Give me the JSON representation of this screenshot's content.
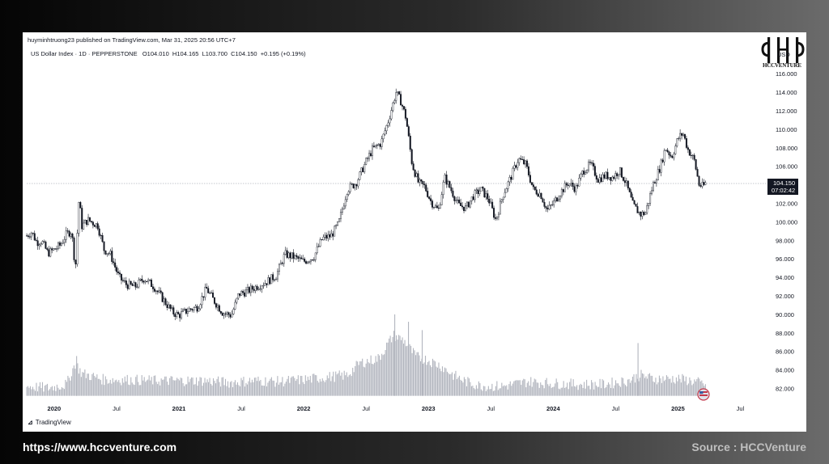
{
  "header": {
    "publisher": "huyminhtruong23 published on TradingView.com, Mar 31, 2025 20:56 UTC+7",
    "symbol_line": "US Dollar Index · 1D · PEPPERSTONE   O104.010  H104.165  L103.700  C104.150  +0.195 (+0.19%)"
  },
  "logo": {
    "text": "HCCVENTURE",
    "currency_tag": "USD"
  },
  "price_label": {
    "value": "104.150",
    "countdown": "07:02:42"
  },
  "footer": {
    "tradingview": "TradingView",
    "website": "https://www.hccventure.com",
    "source": "Source : HCCVenture"
  },
  "colors": {
    "candle": "#131722",
    "volume": "#b2b5be",
    "price_tag": "#131722"
  },
  "chart_data": {
    "type": "line",
    "title": "US Dollar Index · 1D · PEPPERSTONE",
    "y_axis_ticks": [
      "82.000",
      "84.000",
      "86.000",
      "88.000",
      "90.000",
      "92.000",
      "94.000",
      "96.000",
      "98.000",
      "100.000",
      "102.000",
      "104.000",
      "106.000",
      "108.000",
      "110.000",
      "112.000",
      "114.000",
      "116.000"
    ],
    "ylim": [
      80.5,
      117.0
    ],
    "x_axis_ticks": [
      {
        "label": "2020",
        "t": 2020.0,
        "bold": true
      },
      {
        "label": "Jul",
        "t": 2020.5,
        "bold": false
      },
      {
        "label": "2021",
        "t": 2021.0,
        "bold": true
      },
      {
        "label": "Jul",
        "t": 2021.5,
        "bold": false
      },
      {
        "label": "2022",
        "t": 2022.0,
        "bold": true
      },
      {
        "label": "Jul",
        "t": 2022.5,
        "bold": false
      },
      {
        "label": "2023",
        "t": 2023.0,
        "bold": true
      },
      {
        "label": "Jul",
        "t": 2023.5,
        "bold": false
      },
      {
        "label": "2024",
        "t": 2024.0,
        "bold": true
      },
      {
        "label": "Jul",
        "t": 2024.5,
        "bold": false
      },
      {
        "label": "2025",
        "t": 2025.0,
        "bold": true
      },
      {
        "label": "Jul",
        "t": 2025.5,
        "bold": false
      }
    ],
    "xlim": [
      2019.78,
      2025.75
    ],
    "last_close": 104.15,
    "series": [
      {
        "points": [
          [
            2019.78,
            98.5
          ],
          [
            2019.82,
            98.9
          ],
          [
            2019.86,
            97.8
          ],
          [
            2019.9,
            97.9
          ],
          [
            2019.95,
            96.6
          ],
          [
            2020.0,
            97.0
          ],
          [
            2020.05,
            97.5
          ],
          [
            2020.1,
            98.7
          ],
          [
            2020.14,
            99.0
          ],
          [
            2020.17,
            94.9
          ],
          [
            2020.2,
            102.8
          ],
          [
            2020.22,
            99.5
          ],
          [
            2020.27,
            100.2
          ],
          [
            2020.35,
            99.6
          ],
          [
            2020.4,
            97.0
          ],
          [
            2020.45,
            96.5
          ],
          [
            2020.52,
            94.0
          ],
          [
            2020.58,
            93.2
          ],
          [
            2020.65,
            93.0
          ],
          [
            2020.72,
            93.9
          ],
          [
            2020.8,
            93.0
          ],
          [
            2020.88,
            91.5
          ],
          [
            2020.95,
            90.2
          ],
          [
            2021.0,
            89.9
          ],
          [
            2021.08,
            90.5
          ],
          [
            2021.15,
            90.8
          ],
          [
            2021.22,
            92.8
          ],
          [
            2021.28,
            91.5
          ],
          [
            2021.35,
            90.2
          ],
          [
            2021.42,
            89.9
          ],
          [
            2021.48,
            92.2
          ],
          [
            2021.55,
            92.5
          ],
          [
            2021.62,
            93.0
          ],
          [
            2021.7,
            93.5
          ],
          [
            2021.78,
            94.2
          ],
          [
            2021.85,
            96.5
          ],
          [
            2021.92,
            96.2
          ],
          [
            2022.0,
            95.7
          ],
          [
            2022.08,
            96.2
          ],
          [
            2022.15,
            98.2
          ],
          [
            2022.22,
            98.5
          ],
          [
            2022.28,
            99.8
          ],
          [
            2022.35,
            103.5
          ],
          [
            2022.42,
            104.2
          ],
          [
            2022.5,
            106.5
          ],
          [
            2022.55,
            107.8
          ],
          [
            2022.62,
            108.5
          ],
          [
            2022.68,
            111.0
          ],
          [
            2022.74,
            114.0
          ],
          [
            2022.78,
            113.0
          ],
          [
            2022.82,
            111.2
          ],
          [
            2022.87,
            106.2
          ],
          [
            2022.92,
            104.2
          ],
          [
            2022.97,
            103.8
          ],
          [
            2023.02,
            102.2
          ],
          [
            2023.08,
            101.2
          ],
          [
            2023.13,
            104.8
          ],
          [
            2023.18,
            103.5
          ],
          [
            2023.24,
            101.8
          ],
          [
            2023.3,
            101.5
          ],
          [
            2023.36,
            102.8
          ],
          [
            2023.42,
            103.5
          ],
          [
            2023.48,
            102.5
          ],
          [
            2023.54,
            100.2
          ],
          [
            2023.6,
            103.0
          ],
          [
            2023.66,
            104.8
          ],
          [
            2023.72,
            106.8
          ],
          [
            2023.78,
            106.2
          ],
          [
            2023.84,
            103.5
          ],
          [
            2023.9,
            103.0
          ],
          [
            2023.95,
            101.2
          ],
          [
            2024.0,
            102.0
          ],
          [
            2024.06,
            103.2
          ],
          [
            2024.12,
            104.2
          ],
          [
            2024.18,
            103.6
          ],
          [
            2024.24,
            105.5
          ],
          [
            2024.3,
            106.2
          ],
          [
            2024.36,
            104.6
          ],
          [
            2024.42,
            105.0
          ],
          [
            2024.48,
            104.8
          ],
          [
            2024.53,
            105.6
          ],
          [
            2024.58,
            104.3
          ],
          [
            2024.64,
            101.8
          ],
          [
            2024.7,
            100.8
          ],
          [
            2024.74,
            101.0
          ],
          [
            2024.8,
            104.0
          ],
          [
            2024.86,
            106.0
          ],
          [
            2024.9,
            108.0
          ],
          [
            2024.95,
            107.0
          ],
          [
            2025.0,
            109.0
          ],
          [
            2025.04,
            109.6
          ],
          [
            2025.08,
            107.8
          ],
          [
            2025.13,
            106.7
          ],
          [
            2025.17,
            104.0
          ],
          [
            2025.2,
            103.8
          ],
          [
            2025.22,
            104.15
          ]
        ]
      }
    ],
    "volume_series": {
      "points": [
        [
          2019.78,
          82.0
        ],
        [
          2019.95,
          81.8
        ],
        [
          2020.1,
          82.2
        ],
        [
          2020.17,
          84.5
        ],
        [
          2020.22,
          83.4
        ],
        [
          2020.4,
          82.7
        ],
        [
          2020.6,
          82.7
        ],
        [
          2020.8,
          82.6
        ],
        [
          2021.0,
          82.6
        ],
        [
          2021.2,
          82.6
        ],
        [
          2021.4,
          82.4
        ],
        [
          2021.6,
          82.6
        ],
        [
          2021.8,
          82.5
        ],
        [
          2022.0,
          82.7
        ],
        [
          2022.2,
          83.0
        ],
        [
          2022.35,
          83.2
        ],
        [
          2022.45,
          84.5
        ],
        [
          2022.6,
          85.0
        ],
        [
          2022.72,
          87.5
        ],
        [
          2022.8,
          87.0
        ],
        [
          2022.9,
          85.2
        ],
        [
          2023.0,
          84.8
        ],
        [
          2023.1,
          84.2
        ],
        [
          2023.2,
          83.2
        ],
        [
          2023.3,
          82.5
        ],
        [
          2023.4,
          82.1
        ],
        [
          2023.5,
          82.0
        ],
        [
          2023.6,
          82.0
        ],
        [
          2023.8,
          82.5
        ],
        [
          2024.0,
          82.3
        ],
        [
          2024.2,
          82.2
        ],
        [
          2024.4,
          82.2
        ],
        [
          2024.6,
          82.6
        ],
        [
          2024.7,
          83.2
        ],
        [
          2024.8,
          82.8
        ],
        [
          2025.0,
          82.8
        ],
        [
          2025.1,
          82.6
        ],
        [
          2025.22,
          82.2
        ]
      ],
      "spikes": [
        [
          2020.18,
          85.5
        ],
        [
          2022.73,
          90.0
        ],
        [
          2022.84,
          89.2
        ],
        [
          2022.95,
          88.3
        ],
        [
          2024.68,
          86.9
        ]
      ]
    }
  }
}
